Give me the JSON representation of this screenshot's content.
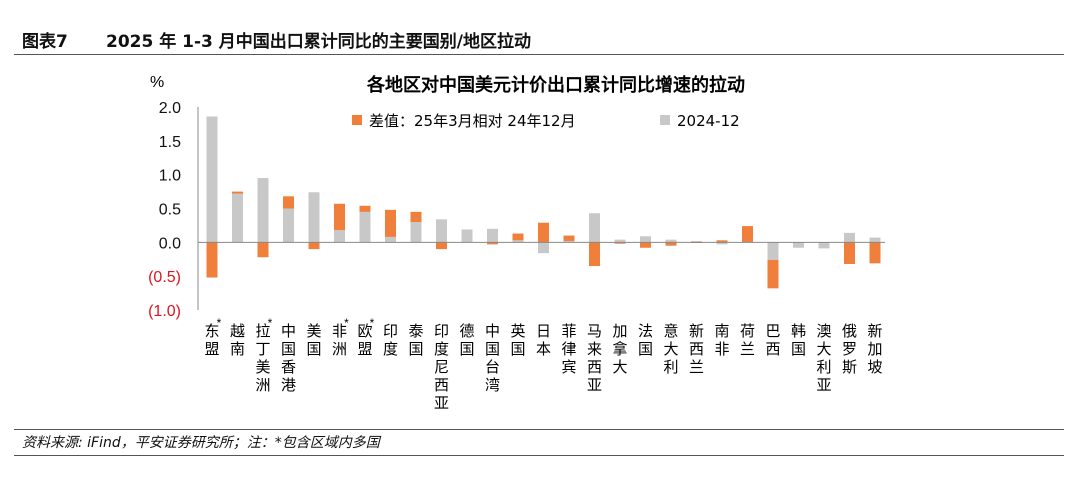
{
  "header": {
    "figure_label": "图表7",
    "figure_title": "2025 年 1-3 月中国出口累计同比的主要国别/地区拉动"
  },
  "footer": {
    "source": "资料来源: iFind，平安证券研究所；注：*包含区域内多国"
  },
  "chart_data": {
    "type": "bar",
    "title": "各地区对中国美元计价出口累计同比增速的拉动",
    "unit_label": "%",
    "ylim": [
      -1.0,
      2.0
    ],
    "yticks": [
      {
        "value": 2.0,
        "label": "2.0"
      },
      {
        "value": 1.5,
        "label": "1.5"
      },
      {
        "value": 1.0,
        "label": "1.0"
      },
      {
        "value": 0.5,
        "label": "0.5"
      },
      {
        "value": 0.0,
        "label": "0.0"
      },
      {
        "value": -0.5,
        "label": "(0.5)"
      },
      {
        "value": -1.0,
        "label": "(1.0)"
      }
    ],
    "negative_tick_color": "#e0141e",
    "legend_position": "top",
    "categories": [
      "东盟",
      "越南",
      "拉丁美洲",
      "中国香港",
      "美国",
      "非洲",
      "欧盟",
      "印度",
      "泰国",
      "印度尼西亚",
      "德国",
      "中国台湾",
      "英国",
      "日本",
      "菲律宾",
      "马来西亚",
      "加拿大",
      "法国",
      "意大利",
      "新西兰",
      "南非",
      "荷兰",
      "巴西",
      "韩国",
      "澳大利亚",
      "俄罗斯",
      "新加坡"
    ],
    "starred": [
      true,
      false,
      true,
      false,
      false,
      true,
      true,
      false,
      false,
      false,
      false,
      false,
      false,
      false,
      false,
      false,
      false,
      false,
      false,
      false,
      false,
      false,
      false,
      false,
      false,
      false,
      false
    ],
    "series": [
      {
        "name": "差值：25年3月相对 24年12月",
        "color": "#f07f3c",
        "values": [
          -0.52,
          0.03,
          -0.22,
          0.18,
          -0.1,
          0.39,
          0.09,
          0.4,
          0.15,
          -0.1,
          0.0,
          -0.03,
          0.1,
          0.29,
          0.08,
          -0.35,
          -0.02,
          -0.08,
          -0.05,
          -0.01,
          0.03,
          0.24,
          -0.42,
          0.0,
          0.0,
          -0.32,
          -0.31
        ]
      },
      {
        "name": "2024-12",
        "color": "#c8c8c8",
        "values": [
          1.86,
          0.72,
          0.95,
          0.5,
          0.74,
          0.18,
          0.45,
          0.08,
          0.3,
          0.34,
          0.19,
          0.2,
          0.03,
          -0.16,
          0.02,
          0.43,
          0.04,
          0.09,
          0.04,
          0.02,
          -0.03,
          0.0,
          -0.26,
          -0.08,
          -0.09,
          0.14,
          0.07
        ]
      }
    ]
  }
}
